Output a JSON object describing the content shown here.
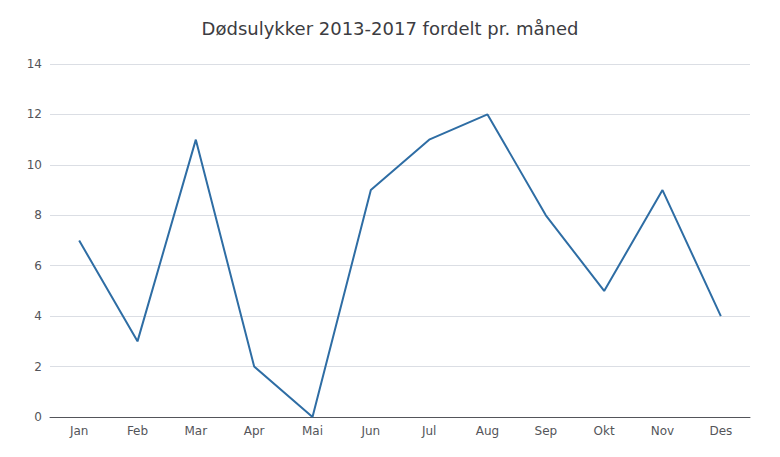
{
  "chart_data": {
    "type": "line",
    "title": "Dødsulykker 2013-2017 fordelt pr. måned",
    "categories": [
      "Jan",
      "Feb",
      "Mar",
      "Apr",
      "Mai",
      "Jun",
      "Jul",
      "Aug",
      "Sep",
      "Okt",
      "Nov",
      "Des"
    ],
    "values": [
      7,
      3,
      11,
      2,
      0,
      9,
      11,
      12,
      8,
      5,
      9,
      4
    ],
    "color": "#2E6DA4",
    "ylim": [
      0,
      14
    ],
    "yticks": [
      0,
      2,
      4,
      6,
      8,
      10,
      12,
      14
    ],
    "grid": true
  }
}
